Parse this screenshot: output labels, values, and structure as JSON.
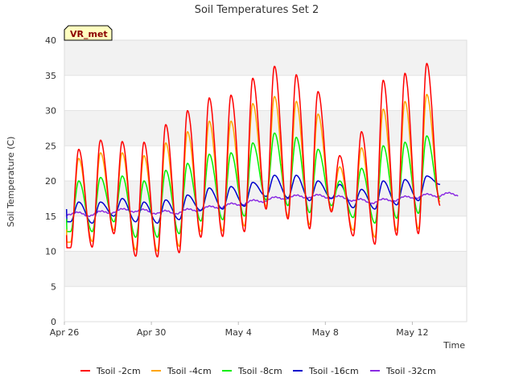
{
  "chart_data": {
    "type": "line",
    "title": "Soil Temperatures Set 2",
    "xlabel": "Time",
    "ylabel": "Soil Temperature (C)",
    "badge": "VR_met",
    "ylim": [
      0,
      40
    ],
    "yticks": [
      0,
      5,
      10,
      15,
      20,
      25,
      30,
      35,
      40
    ],
    "xlim": [
      "2023-04-26",
      "2023-05-14T12:00"
    ],
    "xticks": [
      {
        "date": "2023-04-26",
        "label": "Apr 26"
      },
      {
        "date": "2023-04-30",
        "label": "Apr 30"
      },
      {
        "date": "2023-05-04",
        "label": "May 4"
      },
      {
        "date": "2023-05-08",
        "label": "May 8"
      },
      {
        "date": "2023-05-12",
        "label": "May 12"
      }
    ],
    "grid": true,
    "legend_position": "bottom",
    "x_days": [
      "2023-04-26",
      "2023-04-27",
      "2023-04-28",
      "2023-04-29",
      "2023-04-30",
      "2023-05-01",
      "2023-05-02",
      "2023-05-03",
      "2023-05-04",
      "2023-05-05",
      "2023-05-06",
      "2023-05-07",
      "2023-05-08",
      "2023-05-09",
      "2023-05-10",
      "2023-05-11",
      "2023-05-12",
      "2023-05-13",
      "2023-05-14"
    ],
    "series": [
      {
        "name": "Tsoil -2cm",
        "color": "#ff0000",
        "daily_max": [
          24.5,
          25.8,
          25.6,
          25.5,
          28.0,
          30.0,
          31.8,
          32.2,
          34.6,
          36.3,
          35.1,
          32.7,
          23.6,
          27.0,
          34.3,
          35.3,
          36.7
        ],
        "daily_min": [
          10.5,
          10.6,
          12.5,
          9.3,
          9.2,
          9.8,
          12.0,
          12.1,
          12.8,
          16.0,
          14.6,
          13.2,
          15.6,
          12.2,
          11.0,
          12.3,
          12.5,
          16.5
        ]
      },
      {
        "name": "Tsoil -4cm",
        "color": "#ffa500",
        "daily_max": [
          23.2,
          24.0,
          24.0,
          23.6,
          25.4,
          27.0,
          28.5,
          28.5,
          31.0,
          32.0,
          31.3,
          29.5,
          22.0,
          24.7,
          30.2,
          31.3,
          32.3
        ],
        "daily_min": [
          11.3,
          11.4,
          13.0,
          10.2,
          10.0,
          10.7,
          12.8,
          12.9,
          13.6,
          16.4,
          15.0,
          13.8,
          15.9,
          13.0,
          12.0,
          13.0,
          13.2,
          17.0
        ]
      },
      {
        "name": "Tsoil -8cm",
        "color": "#00ee00",
        "daily_max": [
          20.0,
          20.5,
          20.7,
          20.0,
          21.5,
          22.5,
          23.8,
          24.0,
          25.4,
          26.8,
          26.2,
          24.5,
          20.0,
          21.8,
          25.0,
          25.5,
          26.4
        ],
        "daily_min": [
          12.8,
          12.8,
          14.2,
          12.0,
          12.0,
          12.5,
          14.3,
          14.5,
          15.0,
          17.3,
          16.5,
          15.5,
          16.5,
          14.8,
          14.0,
          14.7,
          15.4,
          17.5
        ]
      },
      {
        "name": "Tsoil -16cm",
        "color": "#0000cc",
        "daily_max": [
          17.0,
          17.0,
          17.5,
          17.0,
          17.3,
          18.0,
          19.0,
          19.2,
          19.8,
          20.8,
          20.8,
          20.0,
          19.5,
          18.8,
          20.0,
          20.2,
          20.7
        ],
        "daily_min": [
          14.2,
          14.0,
          15.0,
          14.2,
          14.0,
          14.5,
          15.8,
          16.0,
          16.4,
          17.8,
          17.6,
          17.2,
          17.5,
          16.2,
          16.0,
          16.6,
          17.2,
          19.5
        ]
      },
      {
        "name": "Tsoil -32cm",
        "color": "#8a2be2",
        "daily_mean": [
          15.5,
          15.2,
          15.6,
          15.9,
          15.6,
          15.5,
          15.9,
          16.3,
          16.7,
          17.2,
          17.6,
          17.8,
          17.8,
          17.5,
          17.0,
          17.3,
          17.7,
          18.0,
          18.1
        ]
      }
    ]
  }
}
